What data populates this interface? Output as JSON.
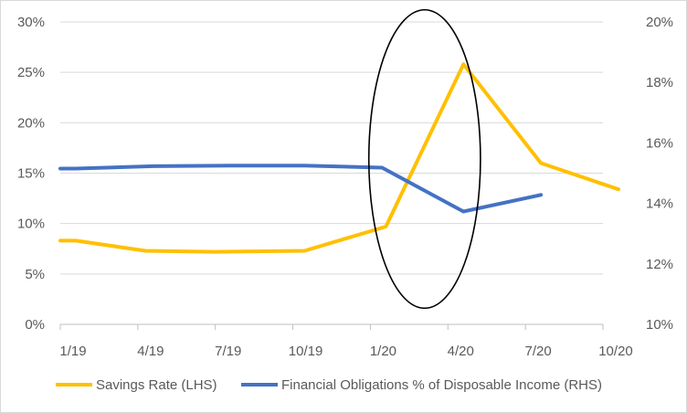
{
  "chart_data": {
    "type": "line",
    "title": "",
    "xlabel": "",
    "ylabel": "",
    "x_tick_labels": [
      "1/19",
      "4/19",
      "7/19",
      "10/19",
      "1/20",
      "4/20",
      "7/20",
      "10/20"
    ],
    "x": [
      "1/19",
      "4/19",
      "7/19",
      "10/19",
      "1/20",
      "4/20",
      "7/20",
      "10/20"
    ],
    "y_left": {
      "ticks": [
        "0%",
        "5%",
        "10%",
        "15%",
        "20%",
        "25%",
        "30%"
      ],
      "ylim": [
        0,
        30
      ]
    },
    "y_right": {
      "ticks": [
        "10%",
        "12%",
        "14%",
        "16%",
        "18%",
        "20%"
      ],
      "ylim": [
        10,
        20
      ]
    },
    "grid": "horizontal",
    "legend_position": "bottom",
    "series": [
      {
        "name": "Savings Rate (LHS)",
        "axis": "left",
        "color": "#FFC000",
        "points": [
          {
            "x": 0.0,
            "y": 8.3
          },
          {
            "x": 0.2,
            "y": 8.3
          },
          {
            "x": 1.1,
            "y": 7.3
          },
          {
            "x": 2.0,
            "y": 7.2
          },
          {
            "x": 3.15,
            "y": 7.3
          },
          {
            "x": 4.2,
            "y": 9.7
          },
          {
            "x": 5.2,
            "y": 25.8
          },
          {
            "x": 6.2,
            "y": 16.0
          },
          {
            "x": 7.2,
            "y": 13.4
          }
        ]
      },
      {
        "name": "Financial Obligations % of Disposable Income (RHS)",
        "axis": "right",
        "color": "#4472C4",
        "points": [
          {
            "x": 0.0,
            "y": 15.15
          },
          {
            "x": 0.2,
            "y": 15.15
          },
          {
            "x": 1.2,
            "y": 15.23
          },
          {
            "x": 2.2,
            "y": 15.25
          },
          {
            "x": 3.15,
            "y": 15.25
          },
          {
            "x": 4.15,
            "y": 15.18
          },
          {
            "x": 5.2,
            "y": 13.73
          },
          {
            "x": 6.2,
            "y": 14.28
          }
        ]
      }
    ],
    "annotation": {
      "shape": "ellipse",
      "x_center": 4.7,
      "y_center": 16.4,
      "rx": 0.72,
      "ry": 14.8
    }
  }
}
